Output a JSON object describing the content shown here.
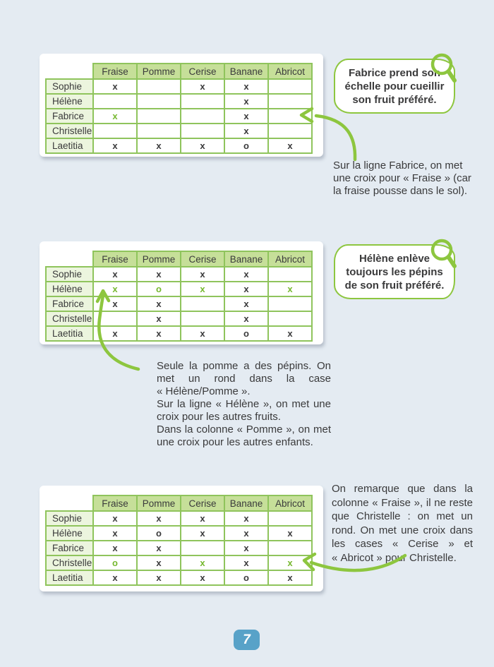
{
  "page": {
    "number": "7"
  },
  "fruits": [
    "Fraise",
    "Pomme",
    "Cerise",
    "Banane",
    "Abricot"
  ],
  "tables": [
    {
      "rows": [
        {
          "name": "Sophie",
          "marks": [
            "x",
            "",
            "x",
            "x",
            ""
          ]
        },
        {
          "name": "Hélène",
          "marks": [
            "",
            "",
            "",
            "x",
            ""
          ]
        },
        {
          "name": "Fabrice",
          "marks": [
            "x",
            "",
            "",
            "x",
            ""
          ]
        },
        {
          "name": "Christelle",
          "marks": [
            "",
            "",
            "",
            "x",
            ""
          ]
        },
        {
          "name": "Laetitia",
          "marks": [
            "x",
            "x",
            "x",
            "o",
            "x"
          ]
        }
      ],
      "green": [
        [
          2,
          0
        ]
      ]
    },
    {
      "rows": [
        {
          "name": "Sophie",
          "marks": [
            "x",
            "x",
            "x",
            "x",
            ""
          ]
        },
        {
          "name": "Hélène",
          "marks": [
            "x",
            "o",
            "x",
            "x",
            "x"
          ]
        },
        {
          "name": "Fabrice",
          "marks": [
            "x",
            "x",
            "",
            "x",
            ""
          ]
        },
        {
          "name": "Christelle",
          "marks": [
            "",
            "x",
            "",
            "x",
            ""
          ]
        },
        {
          "name": "Laetitia",
          "marks": [
            "x",
            "x",
            "x",
            "o",
            "x"
          ]
        }
      ],
      "green": [
        [
          1,
          0
        ],
        [
          1,
          1
        ],
        [
          1,
          2
        ],
        [
          1,
          4
        ]
      ]
    },
    {
      "rows": [
        {
          "name": "Sophie",
          "marks": [
            "x",
            "x",
            "x",
            "x",
            ""
          ]
        },
        {
          "name": "Hélène",
          "marks": [
            "x",
            "o",
            "x",
            "x",
            "x"
          ]
        },
        {
          "name": "Fabrice",
          "marks": [
            "x",
            "x",
            "",
            "x",
            ""
          ]
        },
        {
          "name": "Christelle",
          "marks": [
            "o",
            "x",
            "x",
            "x",
            "x"
          ]
        },
        {
          "name": "Laetitia",
          "marks": [
            "x",
            "x",
            "x",
            "o",
            "x"
          ]
        }
      ],
      "green": [
        [
          3,
          0
        ],
        [
          3,
          2
        ],
        [
          3,
          4
        ]
      ]
    }
  ],
  "bubbles": [
    {
      "text": "Fabrice prend son échelle pour cueillir son fruit préféré."
    },
    {
      "text": "Hélène enlève toujours les pépins de son fruit préféré."
    }
  ],
  "notes": [
    {
      "text": "Sur la ligne Fabrice, on met une croix pour « Fraise » (car la fraise pousse dans le sol)."
    },
    {
      "text": "Seule la pomme a des pépins. On met un rond dans la case « Hélène/Pomme ».\nSur la ligne « Hélène », on met une croix pour les autres fruits.\nDans la colonne « Pomme », on met une croix pour les autres enfants."
    },
    {
      "text": "On remarque que dans la colonne « Fraise », il ne reste que Christelle : on met un rond. On met une croix dans les cases « Cerise » et « Abricot » pour Christelle."
    }
  ],
  "colors": {
    "page_bg": "#e4ebf2",
    "card_bg": "#ffffff",
    "table_border": "#8fc45c",
    "header_cell_bg": "#c6df99",
    "name_cell_bg": "#ecf5de",
    "green_accent": "#8dc63f",
    "green_mark": "#76b82f",
    "text": "#3a3a3b",
    "badge_bg": "#58a2c8",
    "badge_text": "#ffffff"
  }
}
